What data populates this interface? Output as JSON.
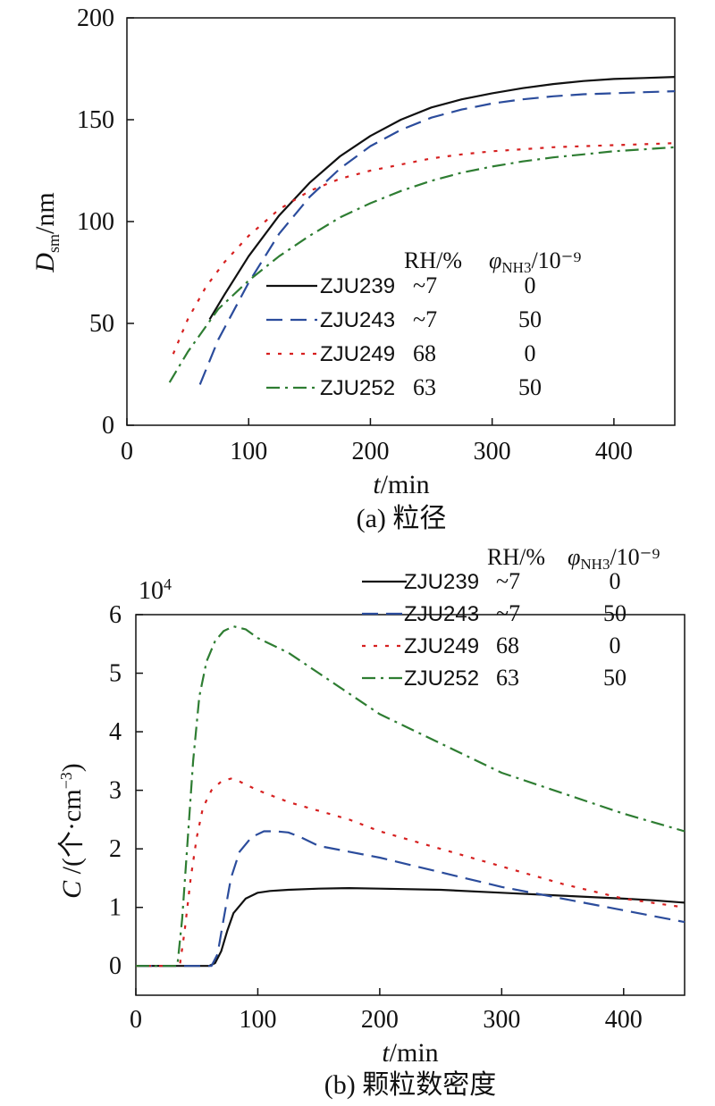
{
  "chart_data": [
    {
      "type": "line",
      "caption": "(a) 粒径",
      "xlabel": "t/min",
      "ylabel": "Dsm/nm",
      "xlim": [
        0,
        450
      ],
      "ylim": [
        0,
        200
      ],
      "xticks": [
        "0",
        "100",
        "200",
        "300",
        "400"
      ],
      "yticks": [
        "0",
        "50",
        "100",
        "150",
        "200"
      ],
      "grid": false,
      "legend_header": {
        "rh": "RH/%",
        "nh3": "φNH3/10⁻⁹"
      },
      "series": [
        {
          "name": "ZJU239",
          "rh": "~7",
          "nh3": "0",
          "color": "#111111",
          "style": "solid",
          "x": [
            68,
            80,
            100,
            125,
            150,
            175,
            200,
            225,
            250,
            275,
            300,
            325,
            350,
            375,
            400,
            425,
            450
          ],
          "y": [
            52,
            64,
            83,
            103,
            119,
            132,
            142,
            150,
            156,
            160,
            163,
            165.5,
            167.5,
            169,
            170,
            170.5,
            171
          ]
        },
        {
          "name": "ZJU243",
          "rh": "~7",
          "nh3": "50",
          "color": "#2b4c9c",
          "style": "dash",
          "x": [
            60,
            75,
            100,
            125,
            150,
            175,
            200,
            225,
            250,
            275,
            300,
            325,
            350,
            375,
            400,
            425,
            450
          ],
          "y": [
            20,
            42,
            70,
            94,
            112,
            126,
            137,
            145,
            151,
            155,
            158,
            160,
            161.5,
            162.5,
            163,
            163.5,
            164
          ]
        },
        {
          "name": "ZJU249",
          "rh": "68",
          "nh3": "0",
          "color": "#d62020",
          "style": "dot",
          "x": [
            38,
            50,
            65,
            80,
            100,
            125,
            150,
            175,
            200,
            225,
            250,
            275,
            300,
            325,
            350,
            375,
            400,
            425,
            450
          ],
          "y": [
            35,
            52,
            68,
            80,
            93,
            106,
            115,
            121,
            125,
            128,
            131,
            133,
            134.5,
            135.5,
            136.5,
            137,
            137.5,
            138,
            138.5
          ]
        },
        {
          "name": "ZJU252",
          "rh": "63",
          "nh3": "50",
          "color": "#2e7d32",
          "style": "dashdot",
          "x": [
            35,
            50,
            75,
            100,
            125,
            150,
            175,
            200,
            225,
            250,
            275,
            300,
            325,
            350,
            375,
            400,
            425,
            450
          ],
          "y": [
            21,
            36,
            57,
            71,
            83,
            93,
            102,
            109,
            115,
            120,
            124,
            127,
            129.5,
            131.5,
            133,
            134.5,
            135.5,
            136.5
          ]
        }
      ]
    },
    {
      "type": "line",
      "caption": "(b) 颗粒数密度",
      "xlabel": "t/min",
      "ylabel": "C /(个·cm⁻³)",
      "y_multiplier": "10⁴",
      "xlim": [
        0,
        450
      ],
      "ylim": [
        -0.5,
        6
      ],
      "xticks": [
        "0",
        "100",
        "200",
        "300",
        "400"
      ],
      "yticks": [
        "0",
        "1",
        "2",
        "3",
        "4",
        "5",
        "6"
      ],
      "grid": false,
      "legend_header": {
        "rh": "RH/%",
        "nh3": "φNH3/10⁻⁹"
      },
      "series": [
        {
          "name": "ZJU239",
          "rh": "~7",
          "nh3": "0",
          "color": "#111111",
          "style": "solid",
          "x": [
            0,
            60,
            65,
            70,
            75,
            80,
            90,
            100,
            110,
            125,
            150,
            175,
            200,
            250,
            300,
            350,
            400,
            425,
            450
          ],
          "y": [
            0,
            0,
            0.05,
            0.25,
            0.6,
            0.9,
            1.15,
            1.25,
            1.28,
            1.3,
            1.32,
            1.33,
            1.32,
            1.3,
            1.25,
            1.2,
            1.15,
            1.12,
            1.08
          ]
        },
        {
          "name": "ZJU243",
          "rh": "~7",
          "nh3": "50",
          "color": "#2b4c9c",
          "style": "dash",
          "x": [
            0,
            62,
            67,
            72,
            78,
            85,
            95,
            105,
            115,
            125,
            135,
            150,
            175,
            200,
            250,
            300,
            350,
            400,
            450
          ],
          "y": [
            0,
            0,
            0.2,
            0.8,
            1.5,
            1.95,
            2.2,
            2.3,
            2.3,
            2.28,
            2.2,
            2.05,
            1.95,
            1.85,
            1.6,
            1.35,
            1.15,
            0.95,
            0.75
          ]
        },
        {
          "name": "ZJU249",
          "rh": "68",
          "nh3": "0",
          "color": "#d62020",
          "style": "dot",
          "x": [
            0,
            36,
            40,
            45,
            50,
            55,
            62,
            70,
            78,
            85,
            100,
            125,
            150,
            175,
            200,
            250,
            300,
            350,
            400,
            450
          ],
          "y": [
            0,
            0,
            0.6,
            1.5,
            2.2,
            2.7,
            3.0,
            3.15,
            3.2,
            3.15,
            3.0,
            2.8,
            2.65,
            2.5,
            2.3,
            2.0,
            1.7,
            1.4,
            1.15,
            1.0
          ]
        },
        {
          "name": "ZJU252",
          "rh": "63",
          "nh3": "50",
          "color": "#2e7d32",
          "style": "dashdot",
          "x": [
            0,
            34,
            38,
            42,
            47,
            52,
            58,
            65,
            72,
            80,
            90,
            100,
            125,
            150,
            200,
            250,
            300,
            350,
            400,
            450
          ],
          "y": [
            0,
            0,
            0.8,
            2.0,
            3.5,
            4.6,
            5.2,
            5.55,
            5.72,
            5.8,
            5.75,
            5.6,
            5.35,
            5.0,
            4.3,
            3.8,
            3.3,
            2.95,
            2.6,
            2.3
          ]
        }
      ]
    }
  ]
}
